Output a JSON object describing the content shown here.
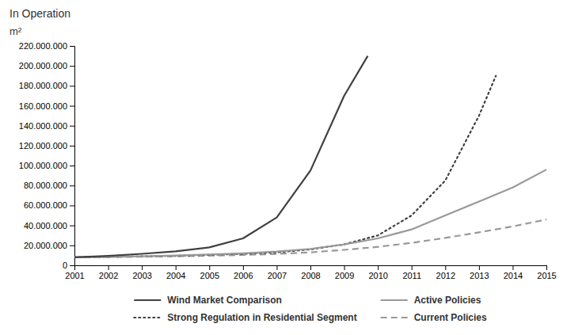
{
  "chart_data": {
    "type": "line",
    "title": "In Operation",
    "subtitle": "m²",
    "xlim": [
      2001,
      2015
    ],
    "xticks": [
      2001,
      2002,
      2003,
      2004,
      2005,
      2006,
      2007,
      2008,
      2009,
      2010,
      2011,
      2012,
      2013,
      2014,
      2015
    ],
    "ylim": [
      0,
      220000000
    ],
    "yticks": [
      0,
      {
        "value": 20000000,
        "label": "20.000.000"
      },
      {
        "value": 40000000,
        "label": "40.000.000"
      },
      {
        "value": 60000000,
        "label": "60.000.000"
      },
      {
        "value": 80000000,
        "label": "80.000.000"
      },
      {
        "value": 100000000,
        "label": "100.000.000"
      },
      {
        "value": 120000000,
        "label": "120.000.000"
      },
      {
        "value": 140000000,
        "label": "140.000.000"
      },
      {
        "value": 160000000,
        "label": "160.000.000"
      },
      {
        "value": 180000000,
        "label": "180.000.000"
      },
      {
        "value": 200000000,
        "label": "200.000.000"
      },
      {
        "value": 220000000,
        "label": "220.000.000"
      }
    ],
    "grid": false,
    "series": [
      {
        "name": "Wind Market Comparison",
        "color": "#404040",
        "line_style": "solid",
        "x": [
          2001,
          2002,
          2003,
          2004,
          2005,
          2006,
          2007,
          2008,
          2009,
          2009.7
        ],
        "values": [
          8000000,
          9500000,
          11500000,
          14000000,
          18000000,
          27000000,
          48000000,
          95000000,
          170000000,
          210000000
        ]
      },
      {
        "name": "Active Policies",
        "color": "#999999",
        "line_style": "solid",
        "x": [
          2001,
          2002,
          2003,
          2004,
          2005,
          2006,
          2007,
          2008,
          2009,
          2010,
          2011,
          2012,
          2013,
          2014,
          2015
        ],
        "values": [
          8000000,
          8500000,
          9000000,
          9800000,
          10800000,
          12000000,
          13800000,
          16500000,
          21000000,
          27000000,
          36000000,
          50000000,
          64000000,
          78000000,
          96000000
        ]
      },
      {
        "name": "Strong Regulation in Residential Segment",
        "color": "#404040",
        "line_style": "dotted",
        "x": [
          2001,
          2002,
          2003,
          2004,
          2005,
          2006,
          2007,
          2008,
          2009,
          2010,
          2011,
          2012,
          2013,
          2013.5
        ],
        "values": [
          8000000,
          8500000,
          9000000,
          9500000,
          10500000,
          11500000,
          13000000,
          16000000,
          21000000,
          30000000,
          50000000,
          85000000,
          150000000,
          190000000
        ]
      },
      {
        "name": "Current Policies",
        "color": "#999999",
        "line_style": "dashed",
        "x": [
          2001,
          2002,
          2003,
          2004,
          2005,
          2006,
          2007,
          2008,
          2009,
          2010,
          2011,
          2012,
          2013,
          2014,
          2015
        ],
        "values": [
          8000000,
          8300000,
          8600000,
          9000000,
          9600000,
          10400000,
          11400000,
          13000000,
          15500000,
          18500000,
          22500000,
          27500000,
          33000000,
          39000000,
          46000000
        ]
      }
    ]
  }
}
